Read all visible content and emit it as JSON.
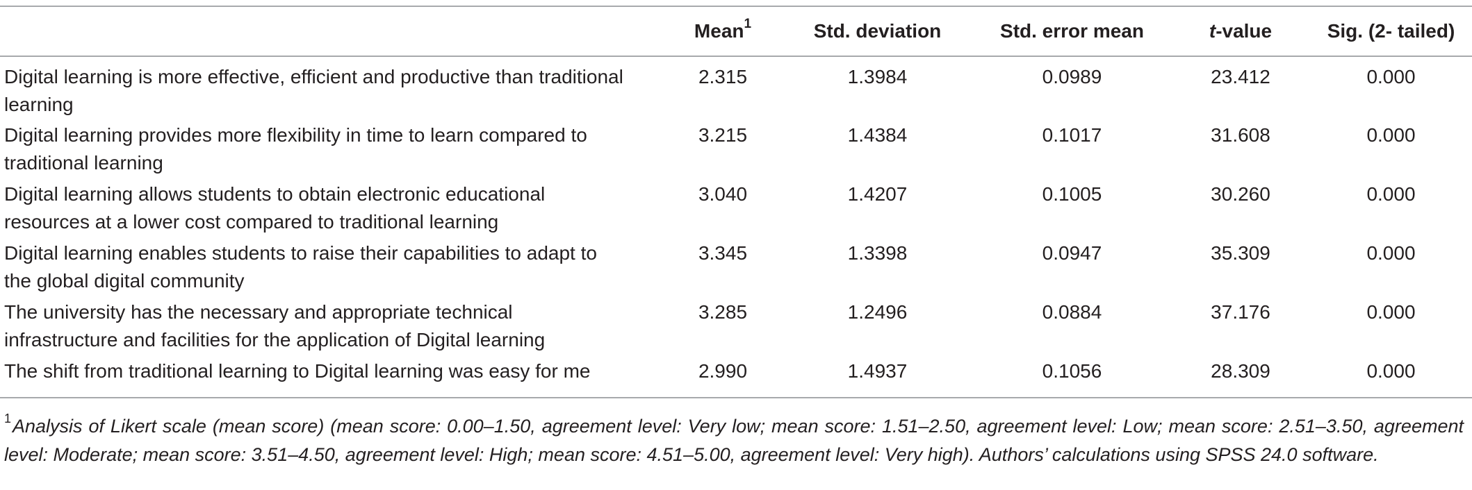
{
  "header": {
    "mean": "Mean",
    "mean_sup": "1",
    "std_deviation": "Std. deviation",
    "std_error_mean": "Std. error mean",
    "t_value_italic": "t",
    "t_value_rest": "-value",
    "sig": "Sig. (2- tailed)"
  },
  "rows": [
    {
      "statement_line1": "Digital learning is more effective, efficient and productive than traditional",
      "statement_line2": "learning",
      "mean": "2.315",
      "std_deviation": "1.3984",
      "std_error_mean": "0.0989",
      "t_value": "23.412",
      "sig": "0.000"
    },
    {
      "statement_line1": "Digital learning provides more flexibility in time to learn compared to",
      "statement_line2": "traditional learning",
      "mean": "3.215",
      "std_deviation": "1.4384",
      "std_error_mean": "0.1017",
      "t_value": "31.608",
      "sig": "0.000"
    },
    {
      "statement_line1": "Digital learning allows students to obtain electronic educational",
      "statement_line2": "resources at a lower cost compared to traditional learning",
      "mean": "3.040",
      "std_deviation": "1.4207",
      "std_error_mean": "0.1005",
      "t_value": "30.260",
      "sig": "0.000"
    },
    {
      "statement_line1": "Digital learning enables students to raise their capabilities to adapt to",
      "statement_line2": "the global digital community",
      "mean": "3.345",
      "std_deviation": "1.3398",
      "std_error_mean": "0.0947",
      "t_value": "35.309",
      "sig": "0.000"
    },
    {
      "statement_line1": "The university has the necessary and appropriate technical",
      "statement_line2": "infrastructure and facilities for the application of Digital learning",
      "mean": "3.285",
      "std_deviation": "1.2496",
      "std_error_mean": "0.0884",
      "t_value": "37.176",
      "sig": "0.000"
    },
    {
      "statement_line1": "The shift from traditional learning to Digital learning was easy for me",
      "statement_line2": "",
      "mean": "2.990",
      "std_deviation": "1.4937",
      "std_error_mean": "0.1056",
      "t_value": "28.309",
      "sig": "0.000"
    }
  ],
  "footnote": {
    "marker": "1",
    "text": "Analysis of Likert scale (mean score) (mean score: 0.00–1.50, agreement level: Very low; mean score: 1.51–2.50, agreement level: Low; mean score: 2.51–3.50, agreement level: Moderate; mean score: 3.51–4.50, agreement level: High; mean score: 4.51–5.00, agreement level: Very high). Authors’ calculations using SPSS 24.0 software."
  }
}
